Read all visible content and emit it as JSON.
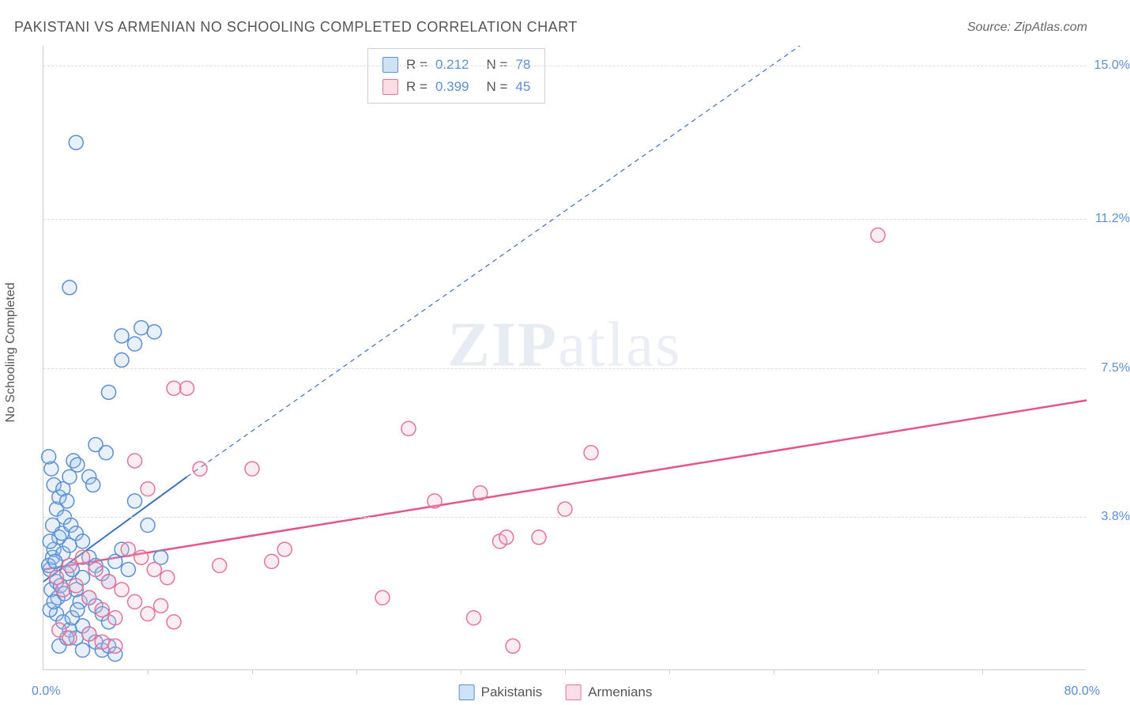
{
  "title": "PAKISTANI VS ARMENIAN NO SCHOOLING COMPLETED CORRELATION CHART",
  "source": "Source: ZipAtlas.com",
  "watermark_bold": "ZIP",
  "watermark_light": "atlas",
  "ylabel": "No Schooling Completed",
  "chart": {
    "type": "scatter",
    "xlim": [
      0,
      80
    ],
    "ylim": [
      0,
      15.5
    ],
    "x_min_label": "0.0%",
    "x_max_label": "80.0%",
    "ytick_values": [
      3.8,
      7.5,
      11.2,
      15.0
    ],
    "ytick_labels": [
      "3.8%",
      "7.5%",
      "11.2%",
      "15.0%"
    ],
    "xtick_positions": [
      8,
      16,
      24,
      32,
      40,
      48,
      56,
      64,
      72
    ],
    "background_color": "#ffffff",
    "grid_color": "#dddddd",
    "axis_color": "#cccccc",
    "marker_radius": 9,
    "marker_stroke_width": 1.5,
    "marker_fill_opacity": 0.25,
    "series": [
      {
        "name": "Pakistanis",
        "color_fill": "#9ec5f0",
        "color_stroke": "#5b8fd6",
        "R": "0.212",
        "N": "78",
        "trend": {
          "x1": 0,
          "y1": 2.2,
          "x2": 11,
          "y2": 4.8,
          "x2_ext": 58,
          "y2_ext": 15.5,
          "color": "#3a6fc2",
          "width": 2,
          "dash": "6,5"
        },
        "points": [
          [
            0.5,
            2.5
          ],
          [
            0.7,
            2.8
          ],
          [
            1.0,
            2.2
          ],
          [
            0.8,
            3.0
          ],
          [
            1.5,
            2.9
          ],
          [
            1.2,
            3.3
          ],
          [
            0.6,
            2.0
          ],
          [
            0.4,
            2.6
          ],
          [
            1.8,
            2.4
          ],
          [
            2.0,
            3.1
          ],
          [
            0.9,
            2.7
          ],
          [
            1.1,
            1.8
          ],
          [
            1.3,
            2.1
          ],
          [
            1.6,
            1.9
          ],
          [
            2.2,
            2.5
          ],
          [
            2.5,
            2.0
          ],
          [
            2.8,
            1.7
          ],
          [
            3.0,
            2.3
          ],
          [
            1.4,
            3.4
          ],
          [
            0.5,
            3.2
          ],
          [
            0.7,
            3.6
          ],
          [
            1.0,
            4.0
          ],
          [
            1.2,
            4.3
          ],
          [
            0.8,
            4.6
          ],
          [
            0.6,
            5.0
          ],
          [
            1.5,
            4.5
          ],
          [
            1.8,
            4.2
          ],
          [
            2.0,
            4.8
          ],
          [
            2.3,
            5.2
          ],
          [
            2.6,
            5.1
          ],
          [
            0.4,
            5.3
          ],
          [
            1.6,
            3.8
          ],
          [
            2.1,
            3.6
          ],
          [
            2.5,
            3.4
          ],
          [
            3.0,
            3.2
          ],
          [
            3.5,
            2.8
          ],
          [
            4.0,
            2.6
          ],
          [
            4.5,
            2.4
          ],
          [
            5.0,
            2.2
          ],
          [
            5.5,
            2.7
          ],
          [
            6.0,
            3.0
          ],
          [
            6.5,
            2.5
          ],
          [
            1.0,
            1.4
          ],
          [
            1.5,
            1.2
          ],
          [
            2.0,
            1.0
          ],
          [
            2.5,
            0.8
          ],
          [
            3.0,
            1.1
          ],
          [
            3.5,
            0.9
          ],
          [
            4.0,
            0.7
          ],
          [
            4.5,
            0.5
          ],
          [
            5.0,
            0.6
          ],
          [
            5.5,
            0.4
          ],
          [
            0.5,
            1.5
          ],
          [
            0.8,
            1.7
          ],
          [
            1.2,
            0.6
          ],
          [
            1.8,
            0.8
          ],
          [
            2.2,
            1.3
          ],
          [
            2.6,
            1.5
          ],
          [
            3.0,
            0.5
          ],
          [
            3.5,
            1.8
          ],
          [
            4.0,
            1.6
          ],
          [
            4.5,
            1.4
          ],
          [
            5.0,
            1.2
          ],
          [
            2.5,
            13.1
          ],
          [
            2.0,
            9.5
          ],
          [
            6.0,
            8.3
          ],
          [
            6.0,
            7.7
          ],
          [
            7.0,
            8.1
          ],
          [
            7.5,
            8.5
          ],
          [
            8.5,
            8.4
          ],
          [
            5.0,
            6.9
          ],
          [
            4.0,
            5.6
          ],
          [
            4.8,
            5.4
          ],
          [
            7.0,
            4.2
          ],
          [
            8.0,
            3.6
          ],
          [
            9.0,
            2.8
          ],
          [
            3.5,
            4.8
          ],
          [
            3.8,
            4.6
          ]
        ]
      },
      {
        "name": "Armenians",
        "color_fill": "#f5b8ca",
        "color_stroke": "#e67399",
        "R": "0.399",
        "N": "45",
        "trend": {
          "x1": 0,
          "y1": 2.5,
          "x2": 80,
          "y2": 6.7,
          "color": "#e6548a",
          "width": 2.5,
          "dash": ""
        },
        "points": [
          [
            1.0,
            2.3
          ],
          [
            1.5,
            2.0
          ],
          [
            2.0,
            2.6
          ],
          [
            2.5,
            2.1
          ],
          [
            3.0,
            2.8
          ],
          [
            3.5,
            1.8
          ],
          [
            4.0,
            2.5
          ],
          [
            4.5,
            1.5
          ],
          [
            5.0,
            2.2
          ],
          [
            5.5,
            1.3
          ],
          [
            6.0,
            2.0
          ],
          [
            6.5,
            3.0
          ],
          [
            7.0,
            1.7
          ],
          [
            7.5,
            2.8
          ],
          [
            8.0,
            1.4
          ],
          [
            8.5,
            2.5
          ],
          [
            9.0,
            1.6
          ],
          [
            9.5,
            2.3
          ],
          [
            10.0,
            1.2
          ],
          [
            7.0,
            5.2
          ],
          [
            8.0,
            4.5
          ],
          [
            10.0,
            7.0
          ],
          [
            11.0,
            7.0
          ],
          [
            12.0,
            5.0
          ],
          [
            13.5,
            2.6
          ],
          [
            16.0,
            5.0
          ],
          [
            17.5,
            2.7
          ],
          [
            18.5,
            3.0
          ],
          [
            26.0,
            1.8
          ],
          [
            28.0,
            6.0
          ],
          [
            30.0,
            4.2
          ],
          [
            33.0,
            1.3
          ],
          [
            33.5,
            4.4
          ],
          [
            35.0,
            3.2
          ],
          [
            35.5,
            3.3
          ],
          [
            36.0,
            0.6
          ],
          [
            38.0,
            3.3
          ],
          [
            40.0,
            4.0
          ],
          [
            42.0,
            5.4
          ],
          [
            64.0,
            10.8
          ],
          [
            1.2,
            1.0
          ],
          [
            2.0,
            0.8
          ],
          [
            3.5,
            0.9
          ],
          [
            4.5,
            0.7
          ],
          [
            5.5,
            0.6
          ]
        ]
      }
    ]
  },
  "legend": {
    "r_label": "R  =",
    "n_label": "N  ="
  },
  "bottom_legend": {
    "s1": "Pakistanis",
    "s2": "Armenians"
  }
}
